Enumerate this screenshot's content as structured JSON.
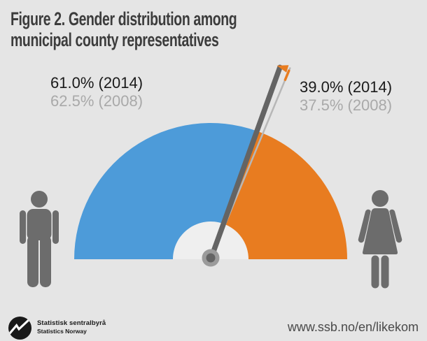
{
  "title": {
    "line1": "Figure 2. Gender distribution among",
    "line2": "municipal county representatives"
  },
  "gauge_labels": {
    "left": {
      "current": "61.0% (2014)",
      "previous": "62.5% (2008)"
    },
    "right": {
      "current": "39.0% (2014)",
      "previous": "37.5% (2008)"
    }
  },
  "chart_data": {
    "type": "gauge",
    "title": "Figure 2. Gender distribution among municipal county representatives",
    "unit": "percent",
    "range": [
      0,
      100
    ],
    "categories": [
      "Men",
      "Women"
    ],
    "series": [
      {
        "name": "2014",
        "values": [
          61.0,
          39.0
        ]
      },
      {
        "name": "2008",
        "values": [
          62.5,
          37.5
        ]
      }
    ],
    "colors": {
      "men": "#4d9bd9",
      "women": "#e87c20"
    },
    "notes": "Half-circle gauge; blue = men share, orange = women share. Dark needle marks 2014 split, thin light needle marks 2008 split, orange arrow shows direction of change."
  },
  "footer": {
    "logo_text_no": "Statistisk sentralbyrå",
    "logo_text_en": "Statistics Norway",
    "url": "www.ssb.no/en/likekom"
  },
  "colors": {
    "background": "#e5e5e5",
    "gauge_hole": "#efefef",
    "men_blue": "#4d9bd9",
    "women_orange": "#e87c20",
    "needle_2014": "#646464",
    "needle_2008": "#b7b7b7",
    "arrow_orange": "#e87c20",
    "pivot_gray": "#9b9b9b",
    "pictogram_gray": "#6c6c6c",
    "title_text": "#3c3c3c",
    "current_label": "#1a1a1a",
    "previous_label": "#a9a9a9",
    "url_text": "#4a4a4a",
    "logo_black": "#1a1a1a"
  }
}
